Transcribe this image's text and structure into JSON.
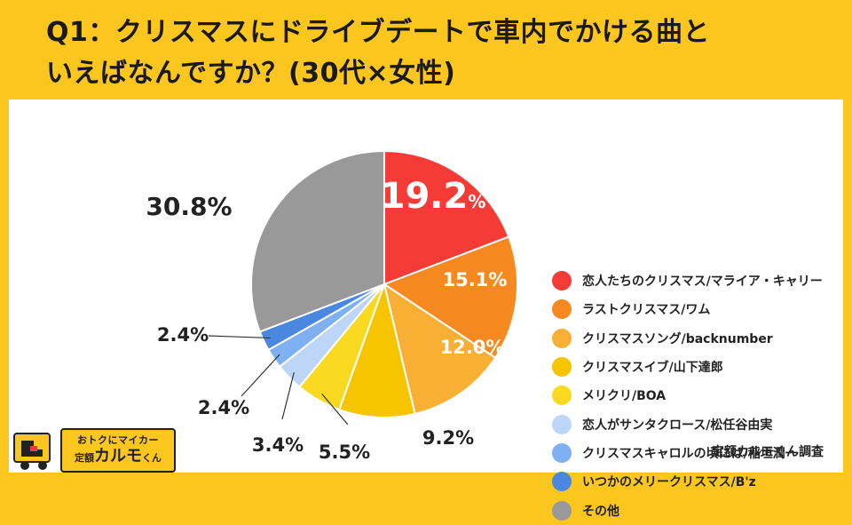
{
  "title_line1": "Q1：クリスマスにドライブデートで車内でかける曲と",
  "title_line2": "いえばなんですか？(30代×女性)",
  "credit": "定額カルモくん調査",
  "logo": {
    "tagline": "おトクにマイカー",
    "brand_prefix": "定額",
    "brand": "カルモ",
    "brand_suffix": "くん"
  },
  "chart_data": {
    "type": "pie",
    "title": "Q1：クリスマスにドライブデートで車内でかける曲といえばなんですか？(30代×女性)",
    "unit": "%",
    "start": "12 o'clock, clockwise",
    "slices": [
      {
        "label": "恋人たちのクリスマス/マライア・キャリー",
        "value": 19.2,
        "color": "#F53B36",
        "label_text": "19.2"
      },
      {
        "label": "ラストクリスマス/ワム",
        "value": 15.1,
        "color": "#F6891F",
        "label_text": "15.1%"
      },
      {
        "label": "クリスマスソング/backnumber",
        "value": 12.0,
        "color": "#F9AE34",
        "label_text": "12.0%"
      },
      {
        "label": "クリスマスイブ/山下達郎",
        "value": 9.2,
        "color": "#F7C400",
        "label_text": "9.2%"
      },
      {
        "label": "メリクリ/BOA",
        "value": 5.5,
        "color": "#F9DA20",
        "label_text": "5.5%"
      },
      {
        "label": "恋人がサンタクロース/松任谷由実",
        "value": 3.4,
        "color": "#BDD6F7",
        "label_text": "3.4%"
      },
      {
        "label": "クリスマスキャロルの頃には/稲垣潤一",
        "value": 2.4,
        "color": "#7FB0F2",
        "label_text": "2.4%"
      },
      {
        "label": "いつかのメリークリスマス/B'z",
        "value": 2.4,
        "color": "#4A88E0",
        "label_text": "2.4%"
      },
      {
        "label": "その他",
        "value": 30.8,
        "color": "#999999",
        "label_text": "30.8%"
      }
    ]
  }
}
